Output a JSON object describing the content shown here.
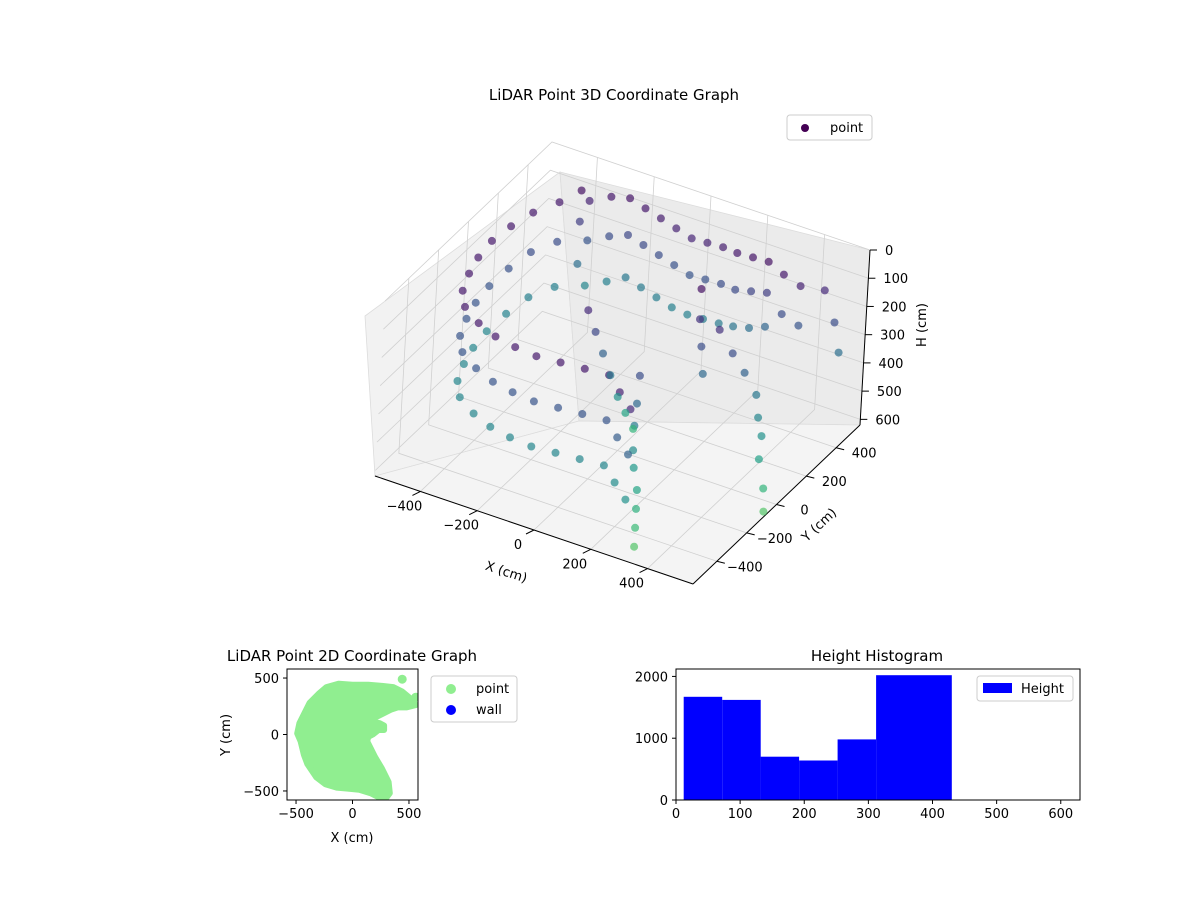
{
  "figure": {
    "background": "#ffffff"
  },
  "chart_data": [
    {
      "id": "lidar-3d",
      "type": "scatter3d",
      "title": "LiDAR Point 3D Coordinate Graph",
      "xlabel": "X (cm)",
      "ylabel": "Y (cm)",
      "zlabel": "H (cm)",
      "xlim": [
        -560,
        560
      ],
      "ylim": [
        -560,
        560
      ],
      "zlim": [
        0,
        620
      ],
      "z_inverted": true,
      "x_ticks": [
        -400,
        -200,
        0,
        200,
        400
      ],
      "y_ticks": [
        -400,
        -200,
        0,
        200,
        400
      ],
      "z_ticks": [
        0,
        100,
        200,
        300,
        400,
        500,
        600
      ],
      "x_tick_labels": [
        "−400",
        "−200",
        "0",
        "200",
        "400"
      ],
      "y_tick_labels": [
        "−400",
        "−200",
        "0",
        "200",
        "400"
      ],
      "z_tick_labels": [
        "0",
        "100",
        "200",
        "300",
        "400",
        "500",
        "600"
      ],
      "colormap": "viridis",
      "color_by": "height",
      "grid": true,
      "legend": {
        "position": "top-right",
        "entries": [
          {
            "label": "point",
            "color": "#440154"
          }
        ]
      },
      "points": [
        [
          -380,
          420,
          40
        ],
        [
          -380,
          420,
          150
        ],
        [
          -380,
          420,
          300
        ],
        [
          -360,
          440,
          80
        ],
        [
          -360,
          440,
          220
        ],
        [
          -360,
          440,
          380
        ],
        [
          -300,
          470,
          60
        ],
        [
          -300,
          470,
          200
        ],
        [
          -300,
          470,
          360
        ],
        [
          -240,
          480,
          50
        ],
        [
          -240,
          480,
          180
        ],
        [
          -240,
          480,
          330
        ],
        [
          -180,
          470,
          60
        ],
        [
          -180,
          470,
          190
        ],
        [
          -180,
          470,
          340
        ],
        [
          -120,
          460,
          70
        ],
        [
          -120,
          460,
          200
        ],
        [
          -120,
          460,
          350
        ],
        [
          -60,
          450,
          80
        ],
        [
          -60,
          450,
          210
        ],
        [
          -60,
          450,
          360
        ],
        [
          0,
          440,
          90
        ],
        [
          0,
          440,
          220
        ],
        [
          0,
          440,
          360
        ],
        [
          60,
          430,
          80
        ],
        [
          60,
          430,
          210
        ],
        [
          60,
          430,
          350
        ],
        [
          120,
          420,
          70
        ],
        [
          120,
          420,
          200
        ],
        [
          120,
          420,
          340
        ],
        [
          180,
          400,
          60
        ],
        [
          180,
          400,
          190
        ],
        [
          180,
          400,
          320
        ],
        [
          240,
          390,
          50
        ],
        [
          240,
          390,
          170
        ],
        [
          240,
          390,
          300
        ],
        [
          300,
          380,
          40
        ],
        [
          300,
          380,
          150
        ],
        [
          300,
          380,
          270
        ],
        [
          360,
          370,
          60
        ],
        [
          360,
          370,
          200
        ],
        [
          420,
          370,
          80
        ],
        [
          420,
          370,
          220
        ],
        [
          480,
          420,
          100
        ],
        [
          520,
          420,
          200
        ],
        [
          540,
          420,
          300
        ],
        [
          -420,
          350,
          60
        ],
        [
          -420,
          350,
          200
        ],
        [
          -420,
          350,
          360
        ],
        [
          -460,
          250,
          60
        ],
        [
          -460,
          250,
          200
        ],
        [
          -460,
          250,
          360
        ],
        [
          -480,
          140,
          60
        ],
        [
          -480,
          140,
          210
        ],
        [
          -480,
          140,
          370
        ],
        [
          -490,
          30,
          60
        ],
        [
          -490,
          30,
          220
        ],
        [
          -490,
          30,
          380
        ],
        [
          -480,
          -80,
          60
        ],
        [
          -480,
          -80,
          220
        ],
        [
          -480,
          -80,
          380
        ],
        [
          -460,
          -180,
          60
        ],
        [
          -460,
          -180,
          220
        ],
        [
          -460,
          -180,
          380
        ],
        [
          -430,
          -280,
          60
        ],
        [
          -430,
          -280,
          220
        ],
        [
          -430,
          -280,
          380
        ],
        [
          -380,
          -360,
          60
        ],
        [
          -380,
          -360,
          220
        ],
        [
          -380,
          -360,
          380
        ],
        [
          -300,
          -420,
          60
        ],
        [
          -300,
          -420,
          220
        ],
        [
          -300,
          -420,
          380
        ],
        [
          -220,
          -460,
          60
        ],
        [
          -220,
          -460,
          220
        ],
        [
          -220,
          -460,
          380
        ],
        [
          -140,
          -480,
          60
        ],
        [
          -140,
          -480,
          220
        ],
        [
          -140,
          -480,
          380
        ],
        [
          -60,
          -490,
          60
        ],
        [
          -60,
          -490,
          220
        ],
        [
          -60,
          -490,
          380
        ],
        [
          20,
          -480,
          60
        ],
        [
          20,
          -480,
          220
        ],
        [
          20,
          -480,
          380
        ],
        [
          100,
          -470,
          60
        ],
        [
          100,
          -470,
          220
        ],
        [
          100,
          -470,
          380
        ],
        [
          180,
          -460,
          60
        ],
        [
          180,
          -460,
          220
        ],
        [
          180,
          -460,
          380
        ],
        [
          240,
          -500,
          80
        ],
        [
          240,
          -500,
          240
        ],
        [
          240,
          -500,
          400
        ],
        [
          300,
          -540,
          100
        ],
        [
          300,
          -540,
          260
        ],
        [
          300,
          -540,
          420
        ],
        [
          200,
          120,
          40
        ],
        [
          220,
          80,
          120
        ],
        [
          240,
          60,
          200
        ],
        [
          260,
          40,
          280
        ],
        [
          300,
          60,
          120
        ],
        [
          340,
          80,
          200
        ],
        [
          380,
          90,
          260
        ],
        [
          420,
          100,
          330
        ],
        [
          450,
          60,
          380
        ],
        [
          480,
          30,
          420
        ],
        [
          500,
          -20,
          470
        ],
        [
          540,
          -60,
          540
        ],
        [
          560,
          -90,
          600
        ],
        [
          160,
          -200,
          200
        ],
        [
          170,
          -230,
          280
        ],
        [
          180,
          -260,
          340
        ],
        [
          200,
          -300,
          400
        ],
        [
          220,
          -330,
          440
        ],
        [
          260,
          -380,
          480
        ],
        [
          280,
          -420,
          520
        ],
        [
          300,
          -460,
          560
        ],
        [
          320,
          -500,
          600
        ],
        [
          -80,
          -100,
          100
        ],
        [
          -60,
          -80,
          180
        ],
        [
          -40,
          -60,
          260
        ],
        [
          -20,
          -40,
          340
        ],
        [
          0,
          -20,
          420
        ],
        [
          20,
          0,
          480
        ],
        [
          40,
          20,
          540
        ]
      ]
    },
    {
      "id": "lidar-2d",
      "type": "scatter",
      "title": "LiDAR Point 2D Coordinate Graph",
      "xlabel": "X (cm)",
      "ylabel": "Y (cm)",
      "xlim": [
        -580,
        580
      ],
      "ylim": [
        -580,
        580
      ],
      "x_ticks": [
        -500,
        0,
        500
      ],
      "y_ticks": [
        -500,
        0,
        500
      ],
      "x_tick_labels": [
        "−500",
        "0",
        "500"
      ],
      "y_tick_labels": [
        "−500",
        "0",
        "500"
      ],
      "legend": {
        "position": "outside-right",
        "entries": [
          {
            "label": "point",
            "color": "#90ee90"
          },
          {
            "label": "wall",
            "color": "#0000ff"
          }
        ]
      },
      "series": [
        {
          "name": "point",
          "color": "#90ee90",
          "region_outline": [
            [
              -230,
              420
            ],
            [
              -120,
              450
            ],
            [
              0,
              440
            ],
            [
              140,
              440
            ],
            [
              260,
              430
            ],
            [
              360,
              420
            ],
            [
              440,
              380
            ],
            [
              500,
              330
            ],
            [
              540,
              290
            ],
            [
              560,
              260
            ],
            [
              480,
              240
            ],
            [
              400,
              240
            ],
            [
              340,
              220
            ],
            [
              300,
              200
            ],
            [
              260,
              180
            ],
            [
              200,
              150
            ],
            [
              160,
              120
            ],
            [
              200,
              110
            ],
            [
              240,
              100
            ],
            [
              280,
              80
            ],
            [
              280,
              40
            ],
            [
              230,
              40
            ],
            [
              180,
              0
            ],
            [
              140,
              -20
            ],
            [
              130,
              -60
            ],
            [
              160,
              -120
            ],
            [
              200,
              -200
            ],
            [
              260,
              -300
            ],
            [
              320,
              -420
            ],
            [
              330,
              -520
            ],
            [
              300,
              -560
            ],
            [
              240,
              -560
            ],
            [
              160,
              -520
            ],
            [
              60,
              -490
            ],
            [
              -40,
              -480
            ],
            [
              -140,
              -470
            ],
            [
              -240,
              -440
            ],
            [
              -320,
              -380
            ],
            [
              -400,
              -260
            ],
            [
              -430,
              -180
            ],
            [
              -460,
              -60
            ],
            [
              -490,
              10
            ],
            [
              -470,
              100
            ],
            [
              -420,
              200
            ],
            [
              -380,
              280
            ],
            [
              -300,
              360
            ]
          ],
          "points": [
            [
              440,
              490
            ],
            [
              560,
              330
            ]
          ]
        },
        {
          "name": "wall",
          "color": "#0000ff",
          "points": []
        }
      ]
    },
    {
      "id": "height-hist",
      "type": "histogram",
      "title": "Height Histogram",
      "xlim": [
        0,
        630
      ],
      "ylim": [
        0,
        2120
      ],
      "x_ticks": [
        0,
        100,
        200,
        300,
        400,
        500,
        600
      ],
      "y_ticks": [
        0,
        1000,
        2000
      ],
      "x_tick_labels": [
        "0",
        "100",
        "200",
        "300",
        "400",
        "500",
        "600"
      ],
      "y_tick_labels": [
        "0",
        "1000",
        "2000"
      ],
      "legend": {
        "position": "top-right",
        "entries": [
          {
            "label": "Height",
            "color": "#0000ff"
          }
        ]
      },
      "series": [
        {
          "name": "Height",
          "color": "#0000ff",
          "bins": [
            {
              "x0": 12,
              "x1": 72,
              "value": 1670
            },
            {
              "x0": 72,
              "x1": 132,
              "value": 1620
            },
            {
              "x0": 132,
              "x1": 192,
              "value": 700
            },
            {
              "x0": 192,
              "x1": 252,
              "value": 640
            },
            {
              "x0": 252,
              "x1": 312,
              "value": 980
            },
            {
              "x0": 312,
              "x1": 430,
              "value": 2020
            }
          ]
        }
      ]
    }
  ]
}
